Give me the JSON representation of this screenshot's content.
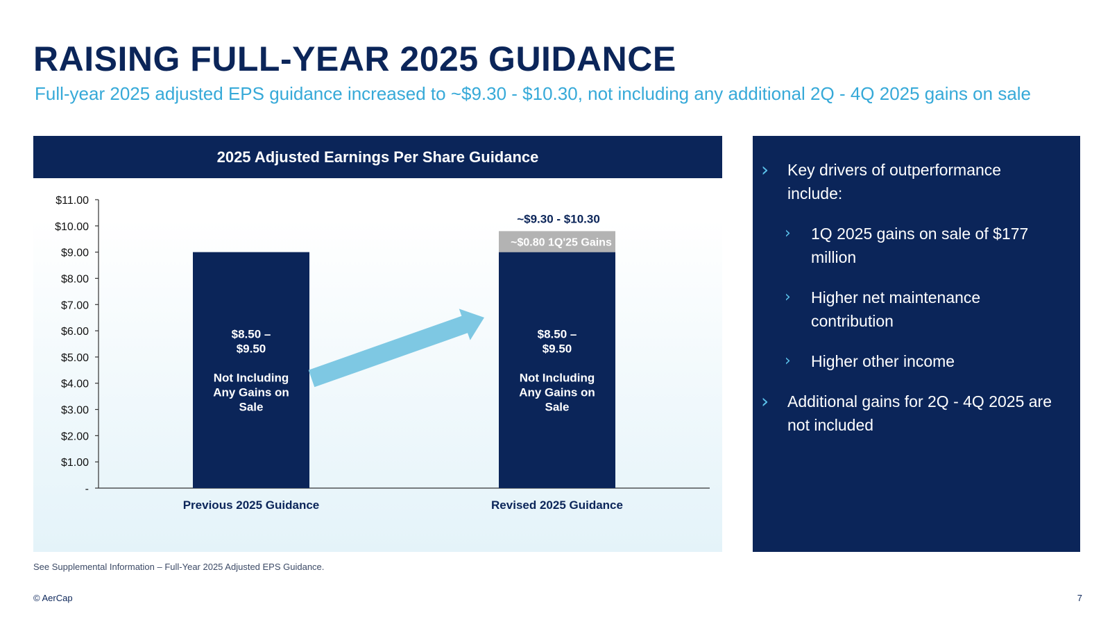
{
  "title": "RAISING FULL-YEAR 2025 GUIDANCE",
  "subtitle": "Full-year 2025 adjusted EPS guidance increased to ~$9.30 - $10.30, not including any additional 2Q - 4Q 2025 gains on sale",
  "chart_data": {
    "type": "bar",
    "title": "2025 Adjusted Earnings Per Share Guidance",
    "categories": [
      "Previous 2025 Guidance",
      "Revised 2025 Guidance"
    ],
    "series": [
      {
        "values": [
          9.0,
          9.0
        ],
        "color": "#0b2559"
      },
      {
        "values": [
          0,
          0.8
        ],
        "color": "#b3b3b3"
      }
    ],
    "bar_labels": [
      [
        "$8.50 –",
        "$9.50",
        "",
        "Not Including",
        "Any Gains on",
        "Sale"
      ],
      [
        "$8.50 –",
        "$9.50",
        "",
        "Not Including",
        "Any Gains on",
        "Sale"
      ]
    ],
    "gains_label": "~$0.80 1Q'25 Gains",
    "total_label": "~$9.30 - $10.30",
    "ylim": [
      0,
      11
    ],
    "yticks": [
      0,
      1,
      2,
      3,
      4,
      5,
      6,
      7,
      8,
      9,
      10,
      11
    ],
    "ytick_labels": [
      "-",
      "$1.00",
      "$2.00",
      "$3.00",
      "$4.00",
      "$5.00",
      "$6.00",
      "$7.00",
      "$8.00",
      "$9.00",
      "$10.00",
      "$11.00"
    ],
    "arrow_color": "#7ec8e3",
    "xlabel": "",
    "ylabel": ""
  },
  "side_panel": {
    "bullets": [
      {
        "text_lines": [
          "Key drivers of outperformance",
          "include:"
        ],
        "level": 1
      },
      {
        "text_lines": [
          "1Q 2025 gains on sale of $177",
          "million"
        ],
        "level": 2
      },
      {
        "text_lines": [
          "Higher net maintenance",
          "contribution"
        ],
        "level": 2
      },
      {
        "text_lines": [
          "Higher other income"
        ],
        "level": 2
      },
      {
        "text_lines": [
          "Additional gains for 2Q - 4Q 2025 are",
          "not included"
        ],
        "level": 1
      }
    ]
  },
  "footnote": "See Supplemental Information – Full-Year 2025 Adjusted EPS Guidance.",
  "copyright": "© AerCap",
  "page_number": "7"
}
